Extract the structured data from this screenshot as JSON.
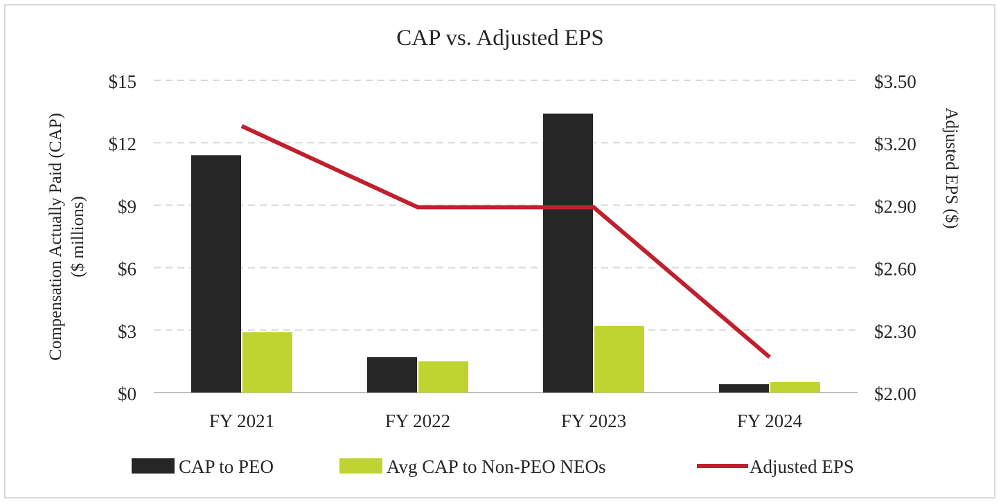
{
  "chart_data": {
    "type": "bar",
    "title": "CAP vs. Adjusted EPS",
    "categories": [
      "FY 2021",
      "FY 2022",
      "FY 2023",
      "FY 2024"
    ],
    "ylabel_line1": "Compensation Actually Paid (CAP)",
    "ylabel_line2": "($ millions)",
    "y2label": "Adjusted EPS ($)",
    "ylim": [
      0,
      15
    ],
    "y2lim": [
      2.0,
      3.5
    ],
    "yticks": [
      "$0",
      "$3",
      "$6",
      "$9",
      "$12",
      "$15"
    ],
    "y2ticks": [
      "$2.00",
      "$2.30",
      "$2.60",
      "$2.90",
      "$3.20",
      "$3.50"
    ],
    "grid": true,
    "legend_position": "bottom",
    "series": [
      {
        "name": "CAP to PEO",
        "kind": "bar",
        "axis": "left",
        "color": "#262626",
        "values": [
          11.4,
          1.7,
          13.4,
          0.4
        ]
      },
      {
        "name": "Avg CAP to Non-PEO NEOs",
        "kind": "bar",
        "axis": "left",
        "color": "#bfd430",
        "values": [
          2.9,
          1.5,
          3.2,
          0.5
        ]
      },
      {
        "name": "Adjusted EPS",
        "kind": "line",
        "axis": "right",
        "color": "#c0202e",
        "values": [
          3.28,
          2.89,
          2.89,
          2.17
        ]
      }
    ]
  }
}
